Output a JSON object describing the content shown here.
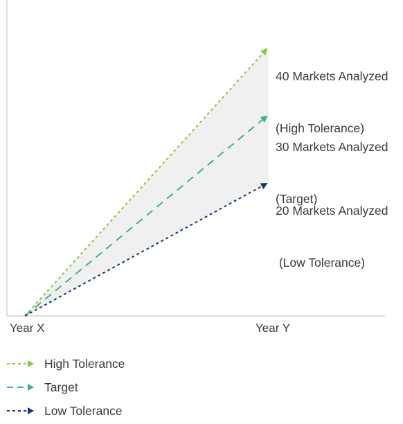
{
  "chart_data": {
    "type": "line",
    "categories": [
      "Year X",
      "Year Y"
    ],
    "series": [
      {
        "key": "high",
        "name": "High Tolerance",
        "values": [
          0,
          40
        ],
        "color": "#8dc63f",
        "dash": "short",
        "annotation": [
          "40 Markets Analyzed",
          "(High Tolerance)"
        ]
      },
      {
        "key": "target",
        "name": "Target",
        "values": [
          0,
          30
        ],
        "color": "#3fae8f",
        "dash": "long",
        "annotation": [
          "30 Markets Analyzed",
          "(Target)"
        ]
      },
      {
        "key": "low",
        "name": "Low Tolerance",
        "values": [
          0,
          20
        ],
        "color": "#123a6b",
        "dash": "short",
        "annotation": [
          "20 Markets Analyzed",
          " (Low Tolerance)"
        ]
      }
    ],
    "band_fill": "#f0f0f0",
    "axis_color": "#d4d4d4",
    "grid": false,
    "legend_position": "bottom-left"
  }
}
